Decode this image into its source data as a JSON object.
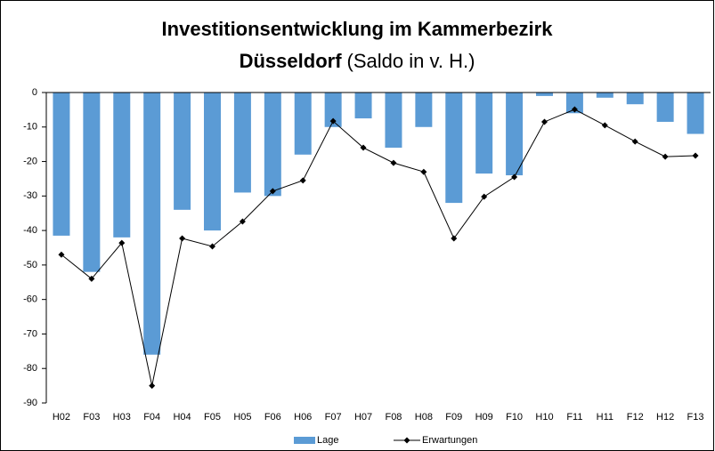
{
  "chart_data": {
    "type": "bar_line",
    "title_lines": [
      "Investitionsentwicklung im Kammerbezirk",
      "Düsseldorf"
    ],
    "subtitle": "(Saldo in v. H.)",
    "categories": [
      "H02",
      "F03",
      "H03",
      "F04",
      "H04",
      "F05",
      "H05",
      "F06",
      "H06",
      "F07",
      "H07",
      "F08",
      "H08",
      "F09",
      "H09",
      "F10",
      "H10",
      "F11",
      "H11",
      "F12",
      "H12",
      "F13"
    ],
    "series": [
      {
        "name": "Lage",
        "type": "bar",
        "color": "#5b9bd5",
        "values": [
          -41.5,
          -52,
          -42,
          -76,
          -34,
          -40,
          -29,
          -30,
          -18,
          -10,
          -7.5,
          -16,
          -10,
          -32,
          -23.5,
          -24,
          -1,
          -6,
          -1.5,
          -3.4,
          -8.5,
          -12
        ]
      },
      {
        "name": "Erwartungen",
        "type": "line",
        "color": "#000000",
        "values": [
          -47,
          -54,
          -43.6,
          -85,
          -42.3,
          -44.6,
          -37.4,
          -28.6,
          -25.5,
          -8.3,
          -16,
          -20.4,
          -23,
          -42.3,
          -30.2,
          -24.5,
          -8.5,
          -4.9,
          -9.5,
          -14.2,
          -18.6,
          -18.3
        ]
      }
    ],
    "ylim": [
      -90,
      0
    ],
    "yticks": [
      0,
      -10,
      -20,
      -30,
      -40,
      -50,
      -60,
      -70,
      -80,
      -90
    ],
    "legend": "bottom"
  }
}
